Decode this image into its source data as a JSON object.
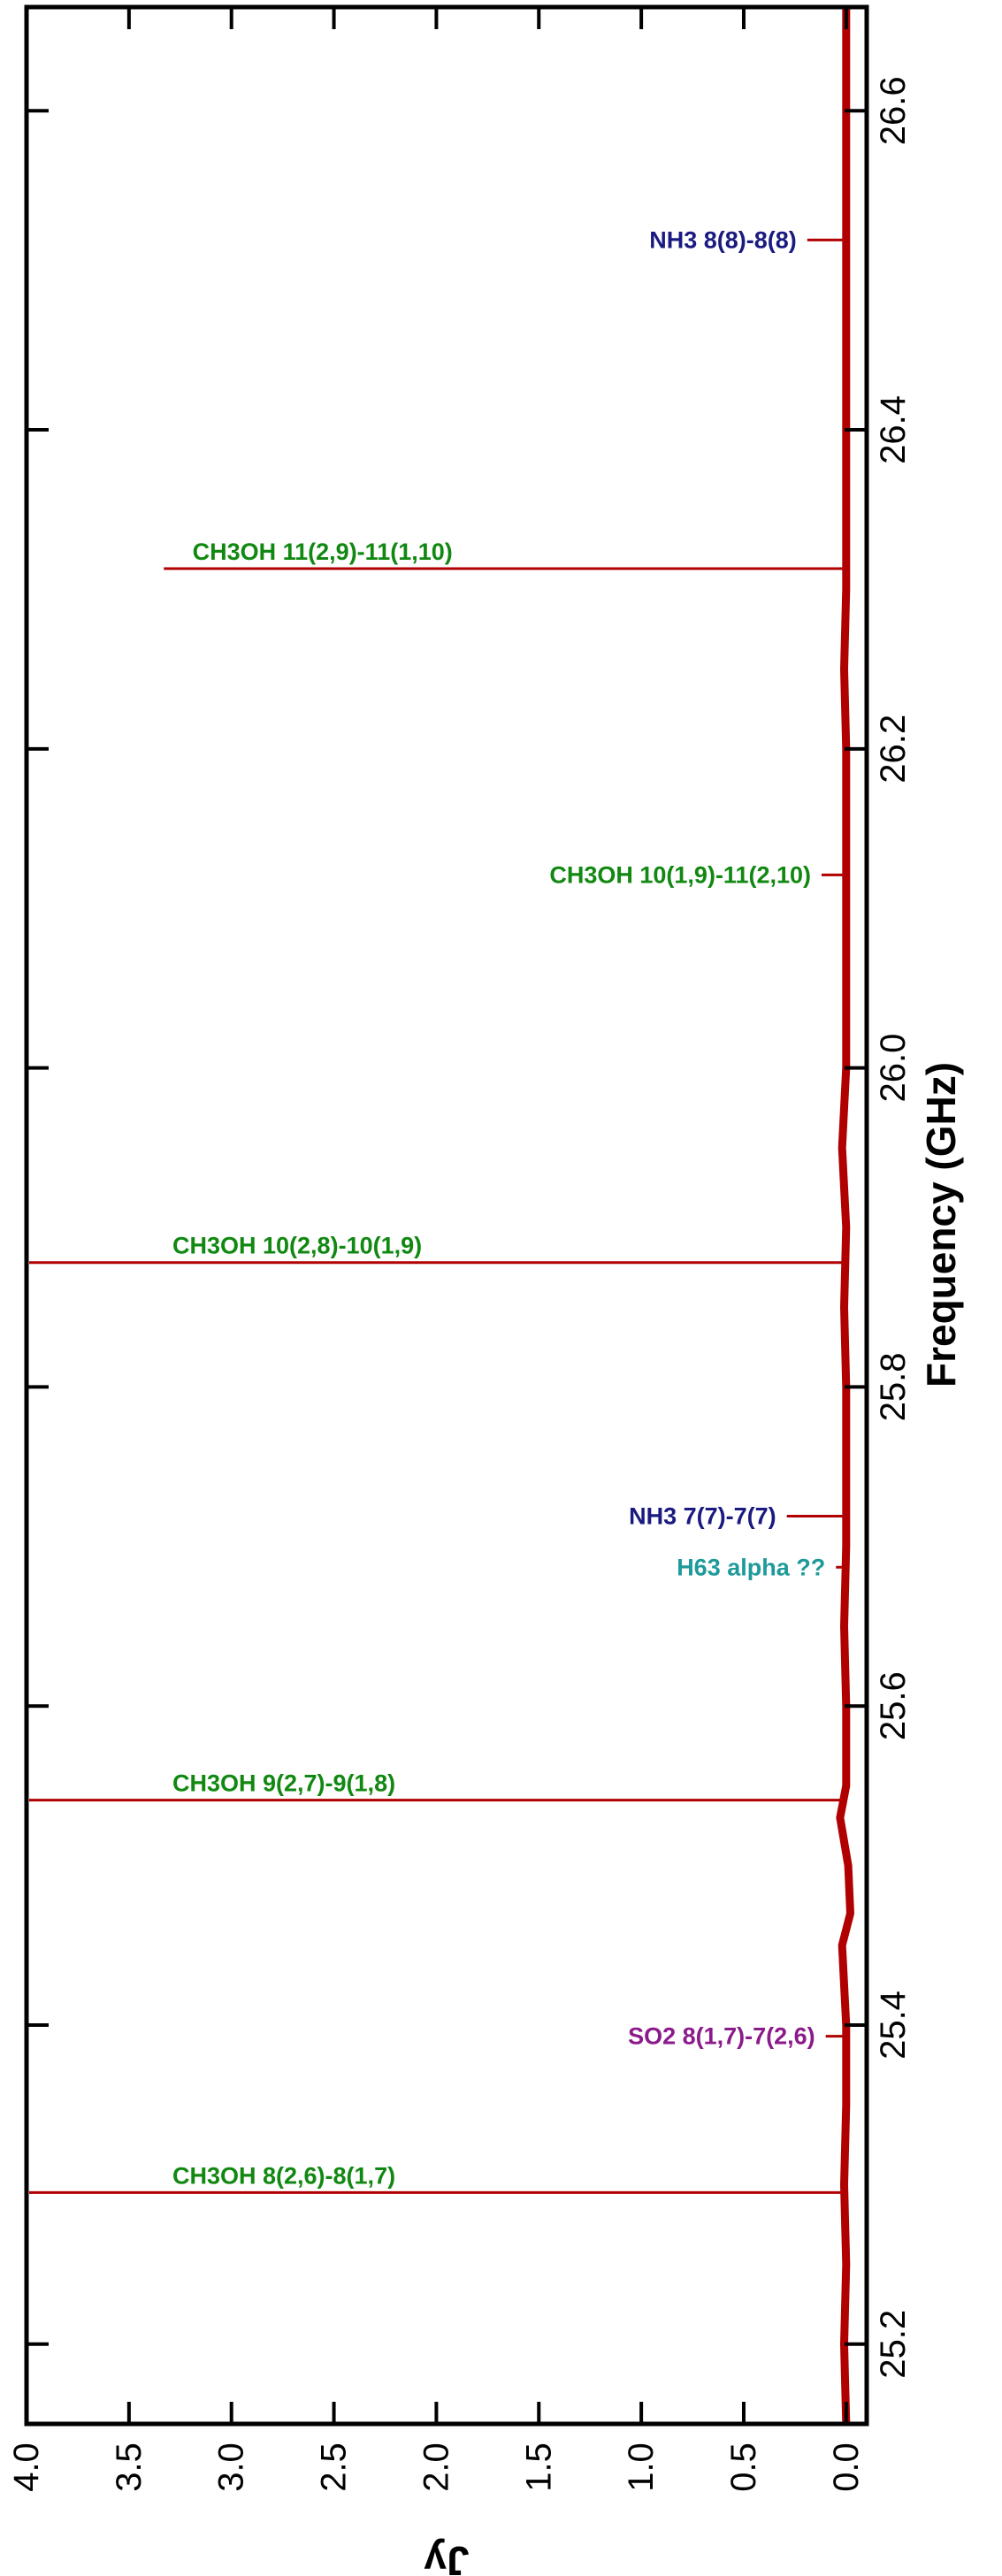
{
  "chart_data": {
    "type": "line",
    "orientation": "rotated-90-clockwise",
    "xlabel": "Frequency (GHz)",
    "ylabel": "Jy",
    "xlim": [
      25.15,
      26.665
    ],
    "ylim": [
      -0.1,
      4.0
    ],
    "x_ticks": [
      25.2,
      25.4,
      25.6,
      25.8,
      26.0,
      26.2,
      26.4,
      26.6
    ],
    "x_tick_labels": [
      "25.2",
      "25.4",
      "25.6",
      "25.8",
      "26.0",
      "26.2",
      "26.4",
      "26.6"
    ],
    "y_ticks": [
      4.0,
      3.5,
      3.0,
      2.5,
      2.0,
      1.5,
      1.0,
      0.5,
      0.0
    ],
    "y_tick_labels": [
      "4.0",
      "3.5",
      "3.0",
      "2.5",
      "2.0",
      "1.5",
      "1.0",
      "0.5",
      "0.0"
    ],
    "grid": false,
    "spectrum_color": "#b00000",
    "baseline_points": [
      [
        25.15,
        0.0
      ],
      [
        25.2,
        0.01
      ],
      [
        25.25,
        0.0
      ],
      [
        25.3,
        0.01
      ],
      [
        25.35,
        0.0
      ],
      [
        25.4,
        0.0
      ],
      [
        25.45,
        0.02
      ],
      [
        25.47,
        -0.02
      ],
      [
        25.5,
        -0.01
      ],
      [
        25.53,
        0.03
      ],
      [
        25.55,
        0.0
      ],
      [
        25.6,
        0.0
      ],
      [
        25.65,
        0.01
      ],
      [
        25.7,
        0.0
      ],
      [
        25.75,
        0.0
      ],
      [
        25.8,
        0.0
      ],
      [
        25.85,
        0.01
      ],
      [
        25.9,
        0.0
      ],
      [
        25.95,
        0.02
      ],
      [
        26.0,
        0.0
      ],
      [
        26.05,
        0.0
      ],
      [
        26.1,
        0.0
      ],
      [
        26.15,
        0.0
      ],
      [
        26.2,
        0.0
      ],
      [
        26.25,
        0.01
      ],
      [
        26.3,
        0.0
      ],
      [
        26.35,
        0.0
      ],
      [
        26.4,
        0.0
      ],
      [
        26.45,
        0.0
      ],
      [
        26.5,
        0.0
      ],
      [
        26.55,
        0.0
      ],
      [
        26.6,
        0.0
      ],
      [
        26.665,
        0.0
      ]
    ],
    "lines": [
      {
        "label": "NH3 8(8)-8(8)",
        "freq": 26.519,
        "peak": 0.19,
        "color": "#1a1a80"
      },
      {
        "label": "CH3OH 11(2,9)-11(1,10)",
        "freq": 26.313,
        "peak": 3.33,
        "color": "#118811"
      },
      {
        "label": "CH3OH 10(1,9)-11(2,10)",
        "freq": 26.121,
        "peak": 0.12,
        "color": "#118811"
      },
      {
        "label": "CH3OH 10(2,8)-10(1,9)",
        "freq": 25.878,
        "peak": 4.0,
        "color": "#118811"
      },
      {
        "label": "NH3 7(7)-7(7)",
        "freq": 25.719,
        "peak": 0.29,
        "color": "#1a1a80"
      },
      {
        "label": "H63 alpha ??",
        "freq": 25.687,
        "peak": 0.05,
        "color": "#1f9a9a"
      },
      {
        "label": "CH3OH 9(2,7)-9(1,8)",
        "freq": 25.541,
        "peak": 4.0,
        "color": "#118811"
      },
      {
        "label": "SO2 8(1,7)-7(2,6)",
        "freq": 25.393,
        "peak": 0.1,
        "color": "#8b1a8b"
      },
      {
        "label": "CH3OH 8(2,6)-8(1,7)",
        "freq": 25.295,
        "peak": 4.0,
        "color": "#118811"
      }
    ]
  }
}
